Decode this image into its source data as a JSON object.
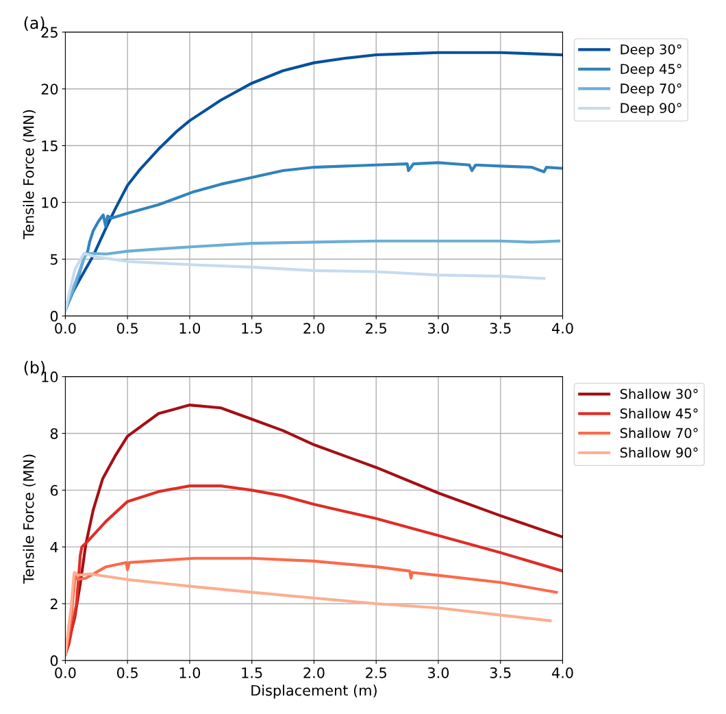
{
  "chart_data": [
    {
      "type": "line",
      "title": "(a)",
      "ylabel": "Tensile Force (MN)",
      "xlim": [
        0,
        4.0
      ],
      "ylim": [
        0,
        25
      ],
      "xticks": [
        {
          "value": 0,
          "label": "0.0"
        },
        0.5,
        {
          "value": 1,
          "label": "1.0"
        },
        1.5,
        {
          "value": 2,
          "label": "2.0"
        },
        2.5,
        {
          "value": 3,
          "label": "3.0"
        },
        3.5,
        {
          "value": 4,
          "label": "4.0"
        }
      ],
      "yticks": [
        0,
        5,
        10,
        15,
        20,
        25
      ],
      "grid": true,
      "legend": "right",
      "line_style": "solid",
      "marker": "none",
      "series": [
        {
          "name": "Deep 30°",
          "color": "#08519c",
          "x": [
            0,
            0.1,
            0.224,
            0.327,
            0.4,
            0.5,
            0.6,
            0.75,
            0.9,
            1.0,
            1.25,
            1.5,
            1.75,
            2.0,
            2.25,
            2.5,
            2.75,
            3.0,
            3.25,
            3.5,
            3.75,
            4.0
          ],
          "values": [
            0.9,
            2.9,
            5.3,
            7.75,
            9.4,
            11.5,
            12.9,
            14.7,
            16.3,
            17.2,
            19.0,
            20.5,
            21.6,
            22.3,
            22.7,
            23.0,
            23.1,
            23.2,
            23.2,
            23.2,
            23.1,
            23.0
          ]
        },
        {
          "name": "Deep 45°",
          "color": "#3182bd",
          "x": [
            0.0,
            0.05,
            0.1,
            0.15,
            0.18,
            0.195,
            0.224,
            0.27,
            0.305,
            0.324,
            0.34,
            0.37,
            0.5,
            0.75,
            1.035,
            1.25,
            1.5,
            1.75,
            2.0,
            2.25,
            2.5,
            2.75,
            2.76,
            2.8,
            3.0,
            3.25,
            3.27,
            3.3,
            3.5,
            3.75,
            3.85,
            3.87,
            4.0
          ],
          "values": [
            0.5,
            1.8,
            3.3,
            5.1,
            5.7,
            6.5,
            7.5,
            8.4,
            8.9,
            7.9,
            8.8,
            8.6,
            9.05,
            9.8,
            10.95,
            11.6,
            12.2,
            12.8,
            13.1,
            13.2,
            13.3,
            13.4,
            12.8,
            13.4,
            13.5,
            13.3,
            12.8,
            13.3,
            13.2,
            13.1,
            12.7,
            13.1,
            13.0
          ]
        },
        {
          "name": "Deep 70°",
          "color": "#6baed6",
          "x": [
            0.0,
            0.05,
            0.106,
            0.164,
            0.25,
            0.327,
            0.5,
            0.75,
            1.035,
            1.5,
            2.0,
            2.5,
            3.0,
            3.5,
            3.75,
            3.97
          ],
          "values": [
            0.5,
            2.0,
            3.7,
            5.5,
            5.5,
            5.45,
            5.7,
            5.9,
            6.1,
            6.4,
            6.5,
            6.6,
            6.6,
            6.6,
            6.5,
            6.6
          ]
        },
        {
          "name": "Deep 90°",
          "color": "#c6dbef",
          "x": [
            0.0,
            0.077,
            0.15,
            0.25,
            0.5,
            1.035,
            1.5,
            2.0,
            2.5,
            3.0,
            3.5,
            3.85
          ],
          "values": [
            0.5,
            4.1,
            5.5,
            5.2,
            4.8,
            4.5,
            4.3,
            4.0,
            3.9,
            3.6,
            3.5,
            3.3
          ]
        }
      ]
    },
    {
      "type": "line",
      "title": "(b)",
      "xlabel": "Displacement (m)",
      "ylabel": "Tensile Force (MN)",
      "xlim": [
        0,
        4.0
      ],
      "ylim": [
        0,
        10
      ],
      "xticks": [
        {
          "value": 0,
          "label": "0.0"
        },
        0.5,
        {
          "value": 1,
          "label": "1.0"
        },
        1.5,
        {
          "value": 2,
          "label": "2.0"
        },
        2.5,
        {
          "value": 3,
          "label": "3.0"
        },
        3.5,
        {
          "value": 4,
          "label": "4.0"
        }
      ],
      "yticks": [
        0,
        2,
        4,
        6,
        8,
        10
      ],
      "grid": true,
      "legend": "right",
      "line_style": "solid",
      "marker": "none",
      "series": [
        {
          "name": "Shallow 30°",
          "color": "#a50f15",
          "x": [
            0,
            0.075,
            0.12,
            0.165,
            0.224,
            0.3,
            0.4,
            0.5,
            0.75,
            1.0,
            1.25,
            1.5,
            1.75,
            2.0,
            2.5,
            3.0,
            3.5,
            4.0
          ],
          "values": [
            0.2,
            1.5,
            2.7,
            4.1,
            5.3,
            6.4,
            7.2,
            7.9,
            8.7,
            9.0,
            8.9,
            8.5,
            8.1,
            7.6,
            6.8,
            5.9,
            5.1,
            4.35
          ]
        },
        {
          "name": "Shallow 45°",
          "color": "#de2d26",
          "x": [
            0,
            0.03,
            0.09,
            0.12,
            0.133,
            0.18,
            0.327,
            0.5,
            0.75,
            1.0,
            1.25,
            1.5,
            1.75,
            2.0,
            2.5,
            3.0,
            3.5,
            4.0
          ],
          "values": [
            0.2,
            0.6,
            2.0,
            3.7,
            4.0,
            4.2,
            4.9,
            5.6,
            5.95,
            6.15,
            6.15,
            6.0,
            5.8,
            5.5,
            5.0,
            4.4,
            3.8,
            3.15
          ]
        },
        {
          "name": "Shallow 70°",
          "color": "#fb6a4a",
          "x": [
            0,
            0.047,
            0.075,
            0.09,
            0.1,
            0.165,
            0.327,
            0.49,
            0.5,
            0.515,
            1.035,
            1.5,
            2.0,
            2.5,
            2.77,
            2.78,
            2.79,
            3.0,
            3.5,
            3.95
          ],
          "values": [
            0.2,
            1.5,
            2.8,
            3.05,
            2.85,
            2.9,
            3.3,
            3.45,
            3.2,
            3.45,
            3.6,
            3.6,
            3.5,
            3.3,
            3.15,
            2.9,
            3.1,
            3.0,
            2.75,
            2.4
          ]
        },
        {
          "name": "Shallow 90°",
          "color": "#fcae91",
          "x": [
            0,
            0.047,
            0.07,
            0.075,
            0.1,
            0.195,
            0.5,
            1.035,
            1.5,
            2.0,
            2.5,
            3.0,
            3.5,
            3.9
          ],
          "values": [
            0.2,
            1.9,
            3.05,
            3.1,
            3.0,
            3.05,
            2.85,
            2.6,
            2.4,
            2.2,
            2.0,
            1.85,
            1.6,
            1.4
          ]
        }
      ]
    }
  ]
}
